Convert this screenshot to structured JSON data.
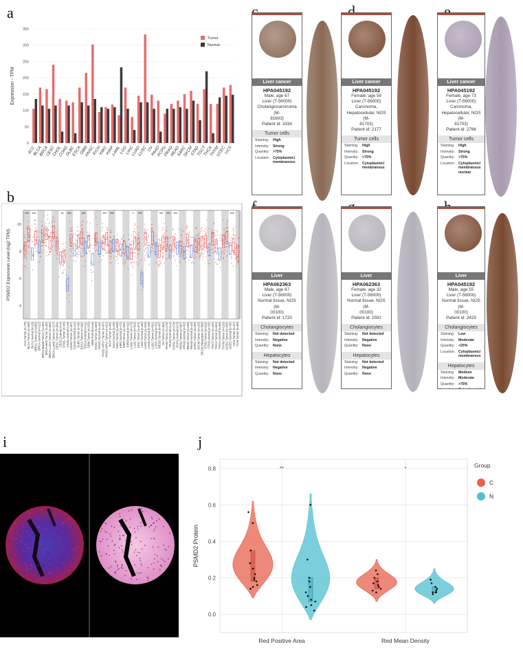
{
  "panel_labels": {
    "a": "a",
    "b": "b",
    "c": "c",
    "d": "d",
    "e": "e",
    "f": "f",
    "g": "g",
    "h": "h",
    "i": "i",
    "j": "j"
  },
  "chart_data": [
    {
      "id": "a",
      "type": "bar",
      "ylabel": "Expression - TPM",
      "ylim": [
        0,
        350
      ],
      "yticks": [
        0,
        50,
        100,
        150,
        200,
        250,
        300,
        350
      ],
      "legend": [
        "Tumor",
        "Normal"
      ],
      "legend_position": "top-right",
      "colors": {
        "Tumor": "#e86b6b",
        "Normal": "#3a3a3a"
      },
      "categories": [
        "ACC",
        "BLCA",
        "BRCA",
        "CESC",
        "CHOL",
        "COAD",
        "DLBC",
        "ESCA",
        "GBM",
        "HNSC",
        "KICH",
        "KIRC",
        "KIRP",
        "LAML",
        "LGG",
        "LIHC",
        "LUAD",
        "LUSC",
        "OV",
        "PAAD",
        "PCPG",
        "PRAD",
        "READ",
        "SARC",
        "SKCM",
        "STAD",
        "TGCT",
        "THCA",
        "THYM",
        "UCEC",
        "UCS"
      ],
      "series": [
        {
          "name": "Tumor",
          "values": [
            105,
            170,
            165,
            240,
            135,
            130,
            125,
            170,
            215,
            302,
            95,
            110,
            118,
            85,
            170,
            80,
            145,
            333,
            148,
            130,
            90,
            120,
            130,
            150,
            160,
            120,
            165,
            120,
            120,
            170,
            178
          ]
        },
        {
          "name": "Normal",
          "values": [
            135,
            115,
            105,
            115,
            35,
            115,
            30,
            125,
            115,
            135,
            110,
            105,
            110,
            232,
            105,
            40,
            125,
            125,
            105,
            35,
            105,
            105,
            110,
            105,
            130,
            70,
            220,
            30,
            140,
            145,
            148
          ]
        }
      ]
    },
    {
      "id": "b",
      "type": "scatter",
      "ylabel": "PSMD2 Expression Level (log2 TPM)",
      "yticks": [
        4,
        6,
        8,
        10
      ],
      "ylim": [
        3,
        11
      ],
      "significance": [
        "***",
        "***",
        "",
        "",
        "",
        "**",
        "***",
        "",
        "***",
        "",
        "",
        "***",
        "***",
        "",
        "",
        "*",
        "***",
        "",
        "",
        "***",
        "***",
        "***",
        "",
        "",
        "",
        "",
        "",
        "",
        "",
        "***",
        "",
        "",
        "***",
        ""
      ],
      "groups": [
        "ACC.Tumor (n=79)",
        "BLCA.Tumor (n=408)",
        "BLCA.Normal (n=19)",
        "BRCA.Tumor (n=1093)",
        "BRCA.Normal (n=112)",
        "BRCA-Basal.Tumor (n=190)",
        "BRCA-Her2.Tumor (n=82)",
        "BRCA-LumA.Tumor (n=564)",
        "BRCA-LumB.Tumor (n=217)",
        "CESC.Tumor (n=304)",
        "CESC.Normal (n=3)",
        "CHOL.Tumor (n=36)",
        "CHOL.Normal (n=9)",
        "COAD.Tumor (n=457)",
        "COAD.Normal (n=41)",
        "DLBC.Tumor (n=48)",
        "ESCA.Tumor (n=184)",
        "ESCA.Normal (n=11)",
        "GBM.Tumor (n=153)",
        "GBM.Normal (n=5)",
        "HNSC.Tumor (n=520)",
        "HNSC.Normal (n=44)",
        "HNSC-HPV+.Tumor (n=97)",
        "HNSC-HPV-.Tumor (n=421)",
        "KICH.Tumor (n=66)",
        "KICH.Normal (n=25)",
        "KIRC.Tumor (n=533)",
        "KIRC.Normal (n=72)",
        "KIRP.Tumor (n=290)",
        "KIRP.Normal (n=32)",
        "LAML.Tumor (n=173)",
        "LGG.Tumor (n=516)",
        "LIHC.Tumor (n=371)",
        "LIHC.Normal (n=50)",
        "LUAD.Tumor (n=515)",
        "LUAD.Normal (n=59)",
        "LUSC.Tumor (n=501)",
        "LUSC.Normal (n=51)",
        "MESO.Tumor (n=87)",
        "OV.Tumor (n=303)",
        "PAAD.Tumor (n=178)",
        "PAAD.Normal (n=4)",
        "PCPG.Tumor (n=179)",
        "PCPG.Normal (n=3)",
        "PRAD.Tumor (n=497)",
        "PRAD.Normal (n=52)",
        "READ.Tumor (n=166)",
        "READ.Normal (n=10)",
        "SARC.Tumor (n=259)",
        "SKCM.Tumor (n=103)",
        "SKCM.Metastasis (n=368)",
        "STAD.Tumor (n=415)",
        "STAD.Normal (n=35)",
        "TGCT.Tumor (n=150)",
        "THCA.Tumor (n=501)",
        "THCA.Normal (n=59)",
        "THYM.Tumor (n=120)",
        "UCEC.Tumor (n=545)",
        "UCEC.Normal (n=35)",
        "UCS.Tumor (n=57)",
        "UVM.Tumor (n=80)"
      ]
    },
    {
      "id": "j",
      "type": "violin",
      "ylabel": "PSMD2 Protein",
      "ylim": [
        -0.1,
        0.85
      ],
      "yticks": [
        0.0,
        0.2,
        0.4,
        0.6,
        0.8
      ],
      "categories": [
        "Red Positive Area",
        "Red Mean Density"
      ],
      "legend_title": "Group",
      "legend_position": "right",
      "groups": [
        {
          "name": "C",
          "color": "#e8604c"
        },
        {
          "name": "N",
          "color": "#4fbfd1"
        }
      ],
      "significance": [
        "**",
        "*"
      ],
      "points": {
        "Red Positive Area": {
          "C": [
            0.14,
            0.16,
            0.18,
            0.2,
            0.22,
            0.25,
            0.28,
            0.35,
            0.5,
            0.56,
            0.15,
            0.19
          ],
          "N": [
            0.02,
            0.04,
            0.05,
            0.08,
            0.1,
            0.12,
            0.15,
            0.18,
            0.2,
            0.3,
            0.6,
            0.07
          ]
        },
        "Red Mean Density": {
          "C": [
            0.12,
            0.13,
            0.14,
            0.15,
            0.16,
            0.17,
            0.18,
            0.2,
            0.22,
            0.24
          ],
          "N": [
            0.11,
            0.12,
            0.12,
            0.13,
            0.14,
            0.15,
            0.17,
            0.19,
            0.12
          ]
        }
      }
    }
  ],
  "hpa_cards": [
    {
      "id": "c",
      "top_band": "Liver cancer",
      "antibody": "HPA045192",
      "info": [
        "Male, age 67",
        "Liver (T-56000)",
        "Cholangiocarcinoma (M-",
        "81603)",
        "Patient id: 3334"
      ],
      "sections": [
        {
          "title": "Tumor cells",
          "rows": [
            [
              "Staining:",
              "High"
            ],
            [
              "Intensity:",
              "Strong"
            ],
            [
              "Quantity:",
              ">75%"
            ],
            [
              "Location:",
              "Cytoplasmic/ membranous"
            ]
          ]
        }
      ]
    },
    {
      "id": "d",
      "top_band": "Liver cancer",
      "antibody": "HPA045192",
      "info": [
        "Female, age 58",
        "Liver (T-56000)",
        "Carcinoma,",
        "Hepatocellular, NOS (M-",
        "81703)",
        "Patient id: 2177"
      ],
      "sections": [
        {
          "title": "Tumor cells",
          "rows": [
            [
              "Staining:",
              "High"
            ],
            [
              "Intensity:",
              "Strong"
            ],
            [
              "Quantity:",
              ">75%"
            ],
            [
              "Location:",
              "Cytoplasmic/ membranous"
            ]
          ]
        }
      ]
    },
    {
      "id": "e",
      "top_band": "Liver cancer",
      "antibody": "HPA045192",
      "info": [
        "Female, age 73",
        "Liver (T-56000)",
        "Carcinoma,",
        "Hepatocellular, NOS (M-",
        "81703)",
        "Patient id: 2766"
      ],
      "sections": [
        {
          "title": "Tumor cells",
          "rows": [
            [
              "Staining:",
              "High"
            ],
            [
              "Intensity:",
              "Strong"
            ],
            [
              "Quantity:",
              ">75%"
            ],
            [
              "Location:",
              "Cytoplasmic/ membranous nuclear"
            ]
          ]
        }
      ]
    },
    {
      "id": "f",
      "top_band": "Liver",
      "antibody": "HPA062363",
      "info": [
        "Male, age 67",
        "Liver (T-56000)",
        "Normal tissue, NOS (M-",
        "00100)",
        "Patient id: 1720"
      ],
      "sections": [
        {
          "title": "Cholangiocytes",
          "rows": [
            [
              "Staining:",
              "Not detected"
            ],
            [
              "Intensity:",
              "Negative"
            ],
            [
              "Quantity:",
              "None"
            ]
          ]
        },
        {
          "title": "Hepatocytes",
          "rows": [
            [
              "Staining:",
              "Not detected"
            ],
            [
              "Intensity:",
              "Negative"
            ],
            [
              "Quantity:",
              "None"
            ]
          ]
        }
      ]
    },
    {
      "id": "g",
      "top_band": "Liver",
      "antibody": "HPA062363",
      "info": [
        "Female, age 32",
        "Liver (T-56000)",
        "Normal tissue, NOS (M-",
        "00100)",
        "Patient id: 2592"
      ],
      "sections": [
        {
          "title": "Cholangiocytes",
          "rows": [
            [
              "Staining:",
              "Not detected"
            ],
            [
              "Intensity:",
              "Negative"
            ],
            [
              "Quantity:",
              "None"
            ]
          ]
        },
        {
          "title": "Hepatocytes",
          "rows": [
            [
              "Staining:",
              "Not detected"
            ],
            [
              "Intensity:",
              "Negative"
            ],
            [
              "Quantity:",
              "None"
            ]
          ]
        }
      ]
    },
    {
      "id": "h",
      "top_band": "Liver",
      "antibody": "HPA045192",
      "info": [
        "Male, age 55",
        "Liver (T-56000)",
        "Normal tissue, NOS (M-",
        "00100)",
        "Patient id: 2429"
      ],
      "sections": [
        {
          "title": "Cholangiocytes",
          "rows": [
            [
              "Staining:",
              "Low"
            ],
            [
              "Intensity:",
              "Moderate"
            ],
            [
              "Quantity:",
              "<25%"
            ],
            [
              "Location:",
              "Cytoplasmic/ membranous"
            ]
          ]
        },
        {
          "title": "Hepatocytes",
          "rows": [
            [
              "Staining:",
              "Medium"
            ],
            [
              "Intensity:",
              "Moderate"
            ],
            [
              "Quantity:",
              ">75%"
            ],
            [
              "Location:",
              "Cytoplasmic/ membranous"
            ]
          ]
        }
      ]
    }
  ],
  "tissue_tones": {
    "c": "#8a6a55",
    "d": "#7a4a32",
    "e": "#a89ab0",
    "f": "#b8b4bc",
    "g": "#b4b0ba",
    "h": "#7a4a30"
  }
}
